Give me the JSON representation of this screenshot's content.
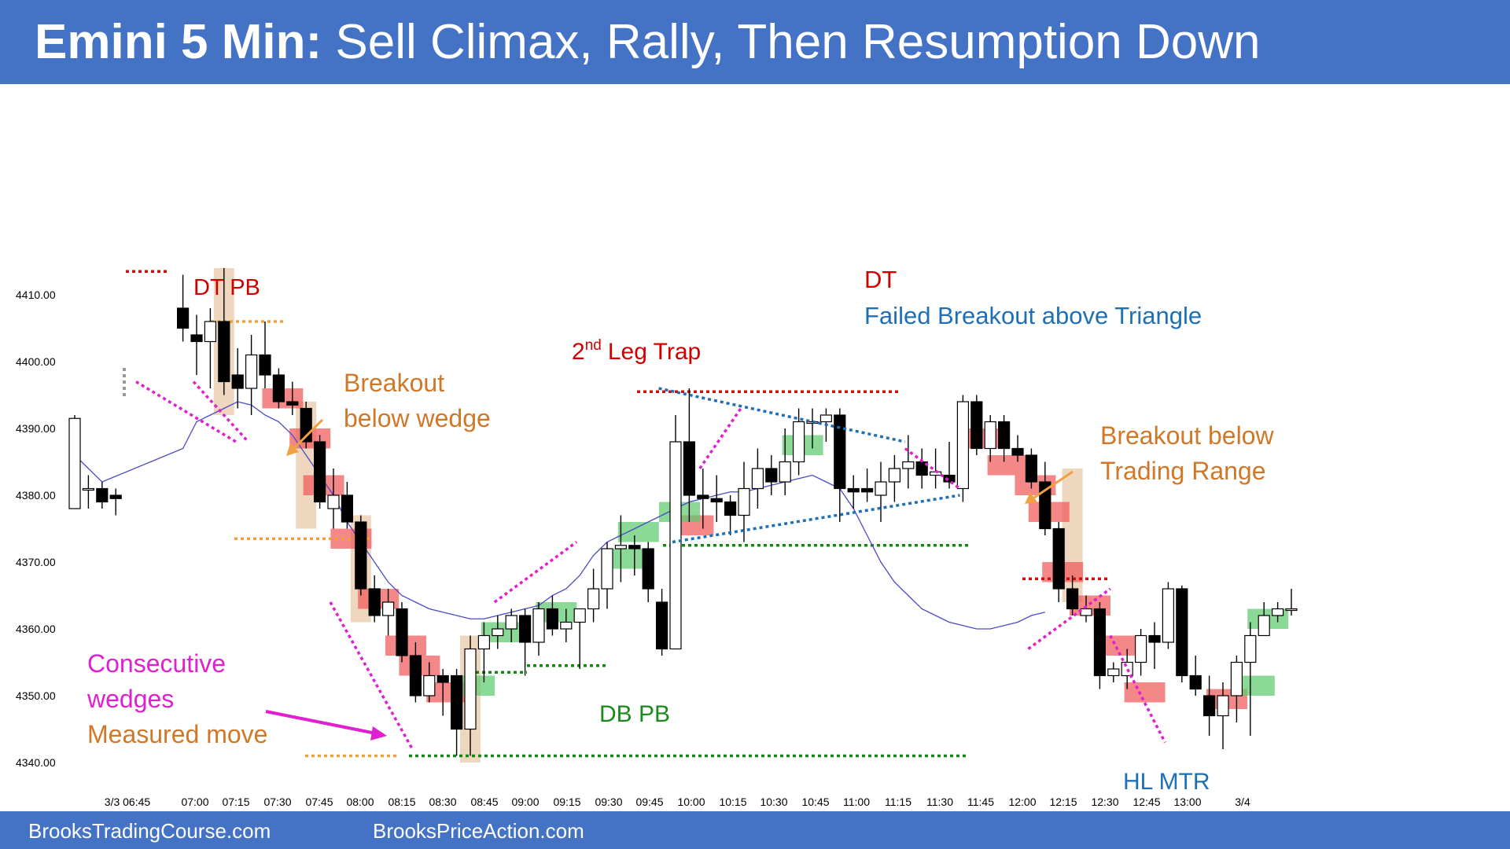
{
  "header": {
    "title_bold": "Emini 5 Min:",
    "title_rest": "Sell Climax, Rally, Then Resumption Down",
    "background": "#4472c4"
  },
  "footer": {
    "left_text": "BrooksTradingCourse.com",
    "right_text": "BrooksPriceAction.com"
  },
  "colors": {
    "bull_highlight": "#5ecb6e",
    "bear_highlight": "#f05a5a",
    "tan_highlight": "#e8c9a8",
    "ema": "#4a4ac8",
    "red_text": "#d00000",
    "blue_text": "#1f6fb4",
    "orange_text": "#d07828",
    "magenta_text": "#e020d0",
    "green_text": "#1a8a1a"
  },
  "chart_data": {
    "type": "candlestick",
    "title": "Emini 5 Min",
    "ylim": [
      4338,
      4434
    ],
    "y_ticks": [
      "4410.00",
      "4400.00",
      "4390.00",
      "4380.00",
      "4370.00",
      "4360.00",
      "4350.00",
      "4340.00"
    ],
    "x_ticks": [
      "3/3 06:45",
      "07:00",
      "07:15",
      "07:30",
      "07:45",
      "08:00",
      "08:15",
      "08:30",
      "08:45",
      "09:00",
      "09:15",
      "09:30",
      "09:45",
      "10:00",
      "10:15",
      "10:30",
      "10:45",
      "11:00",
      "11:15",
      "11:30",
      "11:45",
      "12:00",
      "12:15",
      "12:30",
      "12:45",
      "13:00",
      "3/4"
    ],
    "gap_bars": [
      1,
      2,
      3
    ],
    "candles": [
      {
        "o": 4378.0,
        "h": 4392.0,
        "l": 4378.0,
        "c": 4391.5
      },
      {
        "o": 4381.0,
        "h": 4383.0,
        "l": 4378.0,
        "c": 4381.0
      },
      {
        "o": 4381.0,
        "h": 4382.0,
        "l": 4378.0,
        "c": 4379.0
      },
      {
        "o": 4380.0,
        "h": 4381.0,
        "l": 4377.0,
        "c": 4379.5
      },
      {
        "o": 4408.0,
        "h": 4413.0,
        "l": 4403.0,
        "c": 4405.0
      },
      {
        "o": 4404.0,
        "h": 4407.0,
        "l": 4398.0,
        "c": 4403.0
      },
      {
        "o": 4403.0,
        "h": 4408.0,
        "l": 4396.0,
        "c": 4406.0
      },
      {
        "o": 4406.0,
        "h": 4414.0,
        "l": 4395.0,
        "c": 4397.0
      },
      {
        "o": 4398.0,
        "h": 4402.0,
        "l": 4393.0,
        "c": 4396.0
      },
      {
        "o": 4396.0,
        "h": 4404.0,
        "l": 4392.0,
        "c": 4401.0
      },
      {
        "o": 4401.0,
        "h": 4406.0,
        "l": 4396.0,
        "c": 4398.0
      },
      {
        "o": 4398.0,
        "h": 4399.0,
        "l": 4393.0,
        "c": 4394.0
      },
      {
        "o": 4394.0,
        "h": 4397.0,
        "l": 4392.0,
        "c": 4393.5
      },
      {
        "o": 4393.0,
        "h": 4394.0,
        "l": 4387.0,
        "c": 4388.0
      },
      {
        "o": 4388.0,
        "h": 4389.0,
        "l": 4378.0,
        "c": 4379.0
      },
      {
        "o": 4378.0,
        "h": 4384.0,
        "l": 4375.0,
        "c": 4380.0
      },
      {
        "o": 4380.0,
        "h": 4382.0,
        "l": 4375.0,
        "c": 4376.0
      },
      {
        "o": 4376.0,
        "h": 4377.0,
        "l": 4365.0,
        "c": 4366.0
      },
      {
        "o": 4366.0,
        "h": 4368.0,
        "l": 4361.0,
        "c": 4362.0
      },
      {
        "o": 4362.0,
        "h": 4366.0,
        "l": 4359.0,
        "c": 4364.0
      },
      {
        "o": 4363.0,
        "h": 4364.0,
        "l": 4355.0,
        "c": 4356.0
      },
      {
        "o": 4356.0,
        "h": 4358.0,
        "l": 4349.0,
        "c": 4350.0
      },
      {
        "o": 4350.0,
        "h": 4355.0,
        "l": 4349.0,
        "c": 4353.0
      },
      {
        "o": 4353.0,
        "h": 4354.0,
        "l": 4347.0,
        "c": 4352.0
      },
      {
        "o": 4353.0,
        "h": 4354.0,
        "l": 4341.0,
        "c": 4345.0
      },
      {
        "o": 4345.0,
        "h": 4359.0,
        "l": 4341.0,
        "c": 4357.0
      },
      {
        "o": 4357.0,
        "h": 4361.0,
        "l": 4352.0,
        "c": 4359.0
      },
      {
        "o": 4359.0,
        "h": 4362.0,
        "l": 4357.0,
        "c": 4360.0
      },
      {
        "o": 4360.0,
        "h": 4363.0,
        "l": 4358.0,
        "c": 4362.0
      },
      {
        "o": 4362.0,
        "h": 4363.0,
        "l": 4353.0,
        "c": 4358.0
      },
      {
        "o": 4358.0,
        "h": 4364.0,
        "l": 4356.0,
        "c": 4363.0
      },
      {
        "o": 4363.0,
        "h": 4365.0,
        "l": 4359.0,
        "c": 4360.0
      },
      {
        "o": 4360.0,
        "h": 4363.0,
        "l": 4358.0,
        "c": 4361.0
      },
      {
        "o": 4361.0,
        "h": 4363.0,
        "l": 4354.0,
        "c": 4363.0
      },
      {
        "o": 4363.0,
        "h": 4369.0,
        "l": 4361.0,
        "c": 4366.0
      },
      {
        "o": 4366.0,
        "h": 4373.0,
        "l": 4363.0,
        "c": 4372.0
      },
      {
        "o": 4372.0,
        "h": 4377.0,
        "l": 4367.0,
        "c": 4372.5
      },
      {
        "o": 4372.5,
        "h": 4374.0,
        "l": 4368.0,
        "c": 4372.0
      },
      {
        "o": 4372.0,
        "h": 4373.0,
        "l": 4364.0,
        "c": 4366.0
      },
      {
        "o": 4364.0,
        "h": 4366.0,
        "l": 4356.0,
        "c": 4357.0
      },
      {
        "o": 4357.0,
        "h": 4392.0,
        "l": 4357.0,
        "c": 4388.0
      },
      {
        "o": 4388.0,
        "h": 4396.0,
        "l": 4376.0,
        "c": 4380.0
      },
      {
        "o": 4380.0,
        "h": 4384.0,
        "l": 4375.0,
        "c": 4379.5
      },
      {
        "o": 4379.5,
        "h": 4383.0,
        "l": 4376.0,
        "c": 4379.0
      },
      {
        "o": 4379.0,
        "h": 4380.0,
        "l": 4374.0,
        "c": 4377.0
      },
      {
        "o": 4377.0,
        "h": 4385.0,
        "l": 4373.0,
        "c": 4381.0
      },
      {
        "o": 4381.0,
        "h": 4387.0,
        "l": 4378.0,
        "c": 4384.0
      },
      {
        "o": 4384.0,
        "h": 4386.0,
        "l": 4380.0,
        "c": 4382.0
      },
      {
        "o": 4382.0,
        "h": 4390.0,
        "l": 4380.0,
        "c": 4385.0
      },
      {
        "o": 4385.0,
        "h": 4393.0,
        "l": 4383.0,
        "c": 4391.0
      },
      {
        "o": 4391.0,
        "h": 4393.0,
        "l": 4387.0,
        "c": 4391.0
      },
      {
        "o": 4391.0,
        "h": 4393.0,
        "l": 4388.0,
        "c": 4392.0
      },
      {
        "o": 4392.0,
        "h": 4393.0,
        "l": 4376.0,
        "c": 4381.0
      },
      {
        "o": 4381.0,
        "h": 4383.0,
        "l": 4378.0,
        "c": 4380.5
      },
      {
        "o": 4381.0,
        "h": 4384.0,
        "l": 4379.0,
        "c": 4380.5
      },
      {
        "o": 4380.0,
        "h": 4385.0,
        "l": 4376.0,
        "c": 4382.0
      },
      {
        "o": 4382.0,
        "h": 4386.0,
        "l": 4379.0,
        "c": 4384.0
      },
      {
        "o": 4384.0,
        "h": 4389.0,
        "l": 4381.0,
        "c": 4385.0
      },
      {
        "o": 4385.0,
        "h": 4387.0,
        "l": 4381.0,
        "c": 4383.0
      },
      {
        "o": 4383.0,
        "h": 4387.0,
        "l": 4381.0,
        "c": 4383.5
      },
      {
        "o": 4383.0,
        "h": 4388.0,
        "l": 4381.0,
        "c": 4382.0
      },
      {
        "o": 4381.0,
        "h": 4395.0,
        "l": 4379.0,
        "c": 4394.0
      },
      {
        "o": 4394.0,
        "h": 4395.0,
        "l": 4386.0,
        "c": 4387.0
      },
      {
        "o": 4387.0,
        "h": 4392.0,
        "l": 4385.0,
        "c": 4391.0
      },
      {
        "o": 4391.0,
        "h": 4392.0,
        "l": 4385.0,
        "c": 4387.0
      },
      {
        "o": 4387.0,
        "h": 4389.0,
        "l": 4385.0,
        "c": 4386.0
      },
      {
        "o": 4386.0,
        "h": 4387.0,
        "l": 4381.0,
        "c": 4382.0
      },
      {
        "o": 4382.0,
        "h": 4385.0,
        "l": 4374.0,
        "c": 4375.0
      },
      {
        "o": 4375.0,
        "h": 4376.0,
        "l": 4364.0,
        "c": 4366.0
      },
      {
        "o": 4366.0,
        "h": 4368.0,
        "l": 4362.0,
        "c": 4363.0
      },
      {
        "o": 4362.0,
        "h": 4365.0,
        "l": 4361.0,
        "c": 4363.0
      },
      {
        "o": 4363.0,
        "h": 4364.0,
        "l": 4351.0,
        "c": 4353.0
      },
      {
        "o": 4353.0,
        "h": 4355.0,
        "l": 4352.0,
        "c": 4354.0
      },
      {
        "o": 4353.0,
        "h": 4357.0,
        "l": 4351.0,
        "c": 4355.0
      },
      {
        "o": 4355.0,
        "h": 4360.0,
        "l": 4353.0,
        "c": 4359.0
      },
      {
        "o": 4359.0,
        "h": 4361.0,
        "l": 4354.0,
        "c": 4358.0
      },
      {
        "o": 4358.0,
        "h": 4367.0,
        "l": 4357.0,
        "c": 4366.0
      },
      {
        "o": 4366.0,
        "h": 4366.5,
        "l": 4352.0,
        "c": 4353.0
      },
      {
        "o": 4353.0,
        "h": 4356.0,
        "l": 4350.0,
        "c": 4351.0
      },
      {
        "o": 4350.0,
        "h": 4353.0,
        "l": 4344.0,
        "c": 4347.0
      },
      {
        "o": 4347.0,
        "h": 4352.0,
        "l": 4342.0,
        "c": 4350.0
      },
      {
        "o": 4350.0,
        "h": 4356.0,
        "l": 4346.0,
        "c": 4355.0
      },
      {
        "o": 4355.0,
        "h": 4361.0,
        "l": 4344.0,
        "c": 4359.0
      },
      {
        "o": 4359.0,
        "h": 4364.0,
        "l": 4359.0,
        "c": 4362.0
      },
      {
        "o": 4362.0,
        "h": 4364.0,
        "l": 4361.0,
        "c": 4363.0
      },
      {
        "o": 4363.0,
        "h": 4366.0,
        "l": 4362.0,
        "c": 4363.0
      }
    ],
    "ema": [
      4386,
      4384,
      4382,
      4387,
      4391,
      4392,
      4393,
      4394,
      4393.5,
      4392,
      4391,
      4389,
      4386,
      4383,
      4380,
      4376,
      4373,
      4370,
      4367,
      4365,
      4364,
      4363,
      4362.5,
      4362,
      4361.5,
      4361.5,
      4362,
      4362.5,
      4363,
      4363.5,
      4365,
      4366,
      4368,
      4371,
      4373,
      4374,
      4375,
      4376,
      4377,
      4378,
      4379,
      4379.5,
      4380,
      4380.5,
      4380.5,
      4381,
      4381.5,
      4382,
      4382.5,
      4383,
      4382,
      4381,
      4378,
      4374,
      4370,
      4367,
      4365,
      4363,
      4362,
      4361,
      4360.5,
      4360,
      4360,
      4360.5,
      4361,
      4362,
      4362.5
    ],
    "annotations": [
      {
        "text": "DT PB",
        "color": "red"
      },
      {
        "text": "Breakout",
        "color": "orange"
      },
      {
        "text": "below wedge",
        "color": "orange"
      },
      {
        "text": "2",
        "color": "red"
      },
      {
        "text": "nd",
        "color": "red"
      },
      {
        "text": "Leg Trap",
        "color": "red"
      },
      {
        "text": "DT",
        "color": "red"
      },
      {
        "text": "Failed Breakout above Triangle",
        "color": "blue"
      },
      {
        "text": "Breakout below",
        "color": "orange"
      },
      {
        "text": "Trading Range",
        "color": "orange"
      },
      {
        "text": "Consecutive",
        "color": "magenta"
      },
      {
        "text": "wedges",
        "color": "magenta"
      },
      {
        "text": "Measured move",
        "color": "orange"
      },
      {
        "text": "DB PB",
        "color": "green"
      },
      {
        "text": "HL MTR",
        "color": "blue"
      }
    ],
    "dotted_levels": [
      {
        "price": 4413.5,
        "color": "red"
      },
      {
        "price": 4406.0,
        "color": "orange"
      },
      {
        "price": 4373.5,
        "color": "orange"
      },
      {
        "price": 4341.0,
        "color": "orange"
      },
      {
        "price": 4341.0,
        "color": "green"
      },
      {
        "price": 4353.5,
        "color": "green"
      },
      {
        "price": 4354.5,
        "color": "green"
      },
      {
        "price": 4372.5,
        "color": "green"
      },
      {
        "price": 4395.5,
        "color": "red"
      },
      {
        "price": 4367.5,
        "color": "red"
      }
    ],
    "trendlines": [
      {
        "color": "magenta",
        "from": [
          4397,
          "06:55"
        ],
        "to": [
          4388,
          "07:15"
        ]
      },
      {
        "color": "magenta",
        "from": [
          4364,
          "07:45"
        ],
        "to": [
          4342,
          "08:15"
        ]
      },
      {
        "color": "magenta",
        "from": [
          4364,
          "08:45"
        ],
        "to": [
          4373,
          "09:15"
        ]
      },
      {
        "color": "magenta",
        "from": [
          4384,
          "10:00"
        ],
        "to": [
          4393,
          "10:15"
        ]
      },
      {
        "color": "magenta",
        "from": [
          4387,
          "11:15"
        ],
        "to": [
          4381,
          "11:35"
        ]
      },
      {
        "color": "magenta",
        "from": [
          4357,
          "12:00"
        ],
        "to": [
          4366,
          "12:30"
        ]
      },
      {
        "color": "magenta",
        "from": [
          4359,
          "12:30"
        ],
        "to": [
          4343,
          "12:50"
        ]
      },
      {
        "color": "blue",
        "from": [
          4396,
          "09:45"
        ],
        "to": [
          4388,
          "11:15"
        ]
      },
      {
        "color": "blue",
        "from": [
          4373,
          "09:50"
        ],
        "to": [
          4380,
          "11:35"
        ]
      }
    ]
  }
}
